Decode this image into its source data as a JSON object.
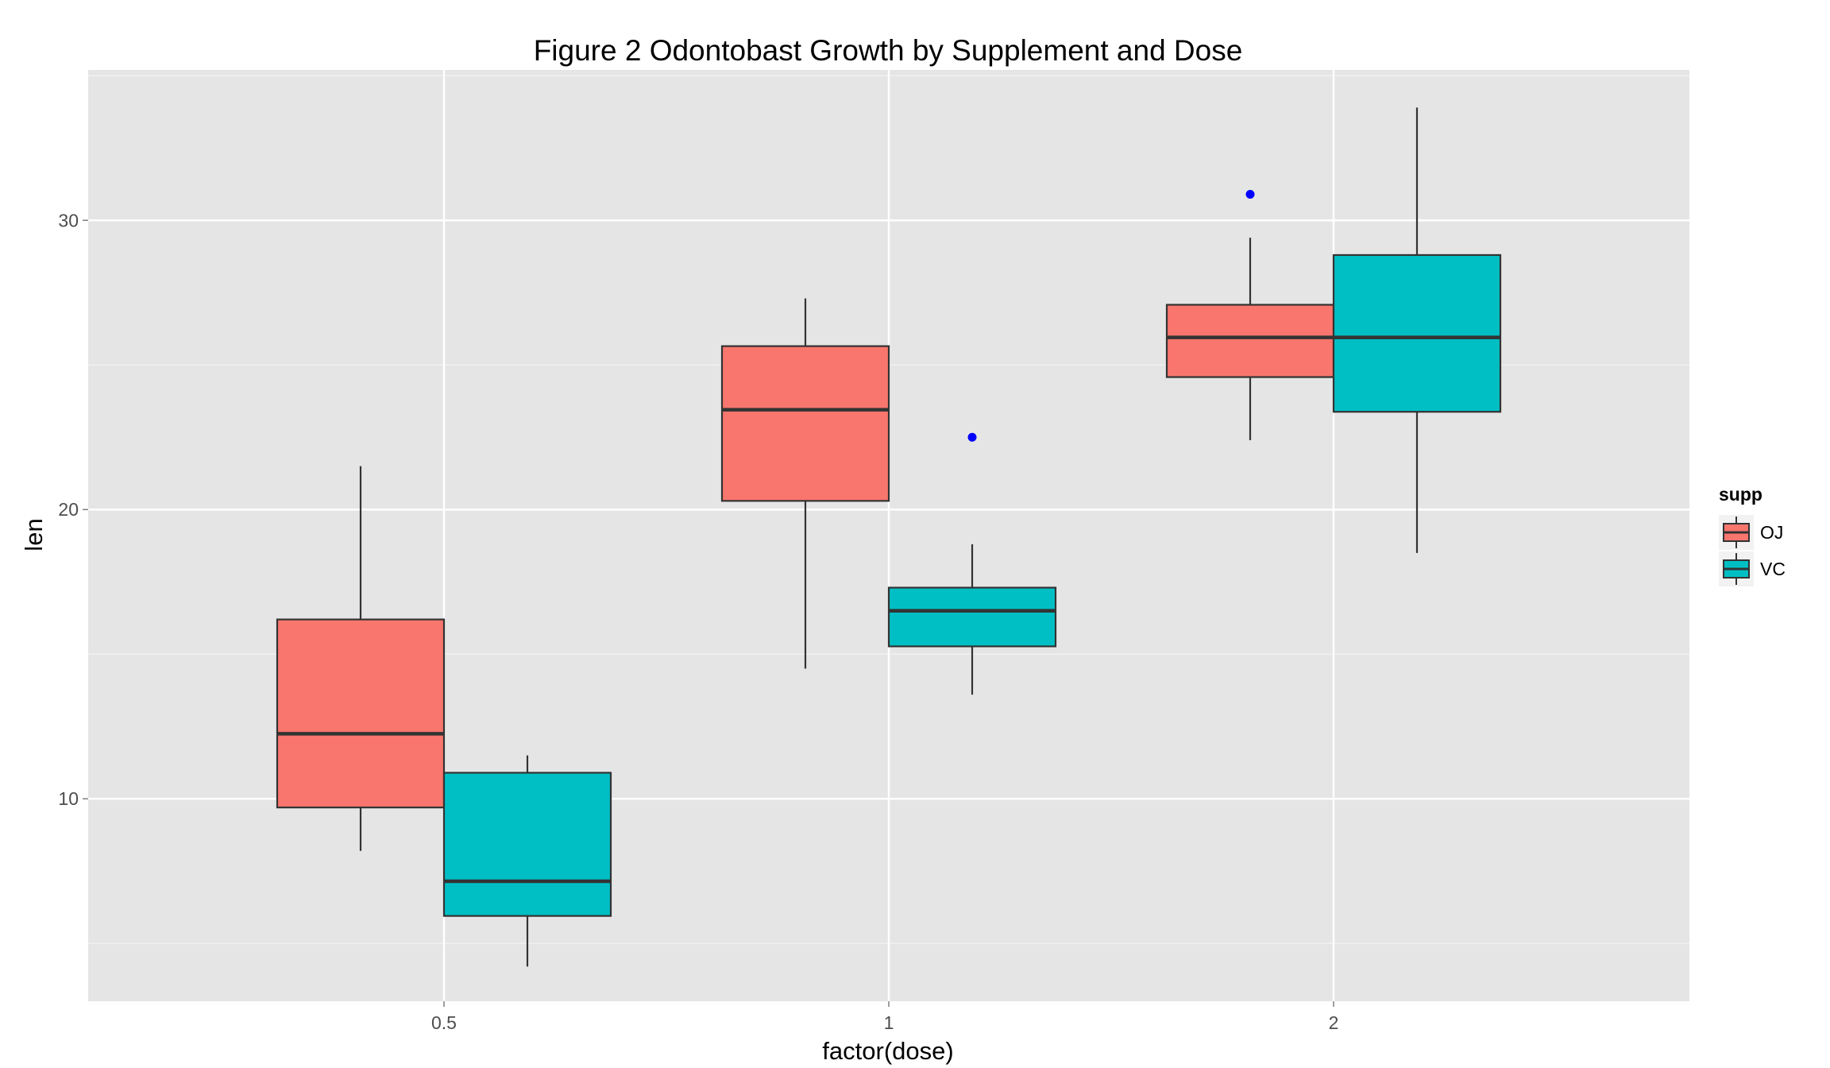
{
  "chart_data": {
    "type": "box",
    "title": "Figure 2 Odontobast Growth by Supplement and Dose",
    "xlabel": "factor(dose)",
    "ylabel": "len",
    "categories": [
      "0.5",
      "1",
      "2"
    ],
    "ylim": [
      3.0,
      35.2
    ],
    "yticks": [
      10,
      20,
      30
    ],
    "grid": true,
    "legend": {
      "title": "supp",
      "position": "right",
      "entries": [
        "OJ",
        "VC"
      ]
    },
    "colors": {
      "OJ": "#F8766D",
      "VC": "#00BFC4",
      "outlier": "#0000FF",
      "panel": "#E5E5E5",
      "grid": "#FFFFFF"
    },
    "series": [
      {
        "name": "OJ",
        "boxes": [
          {
            "dose": "0.5",
            "min": 8.2,
            "q1": 9.7,
            "median": 12.25,
            "q3": 16.2,
            "max": 21.5,
            "outliers": []
          },
          {
            "dose": "1",
            "min": 14.5,
            "q1": 20.3,
            "median": 23.45,
            "q3": 25.65,
            "max": 27.3,
            "outliers": []
          },
          {
            "dose": "2",
            "min": 22.4,
            "q1": 24.58,
            "median": 25.95,
            "q3": 27.08,
            "max": 29.4,
            "outliers": [
              30.9
            ]
          }
        ]
      },
      {
        "name": "VC",
        "boxes": [
          {
            "dose": "0.5",
            "min": 4.2,
            "q1": 5.95,
            "median": 7.15,
            "q3": 10.9,
            "max": 11.5,
            "outliers": []
          },
          {
            "dose": "1",
            "min": 13.6,
            "q1": 15.27,
            "median": 16.5,
            "q3": 17.3,
            "max": 18.8,
            "outliers": [
              22.5
            ]
          },
          {
            "dose": "2",
            "min": 18.5,
            "q1": 23.38,
            "median": 25.95,
            "q3": 28.8,
            "max": 33.9,
            "outliers": []
          }
        ]
      }
    ]
  }
}
